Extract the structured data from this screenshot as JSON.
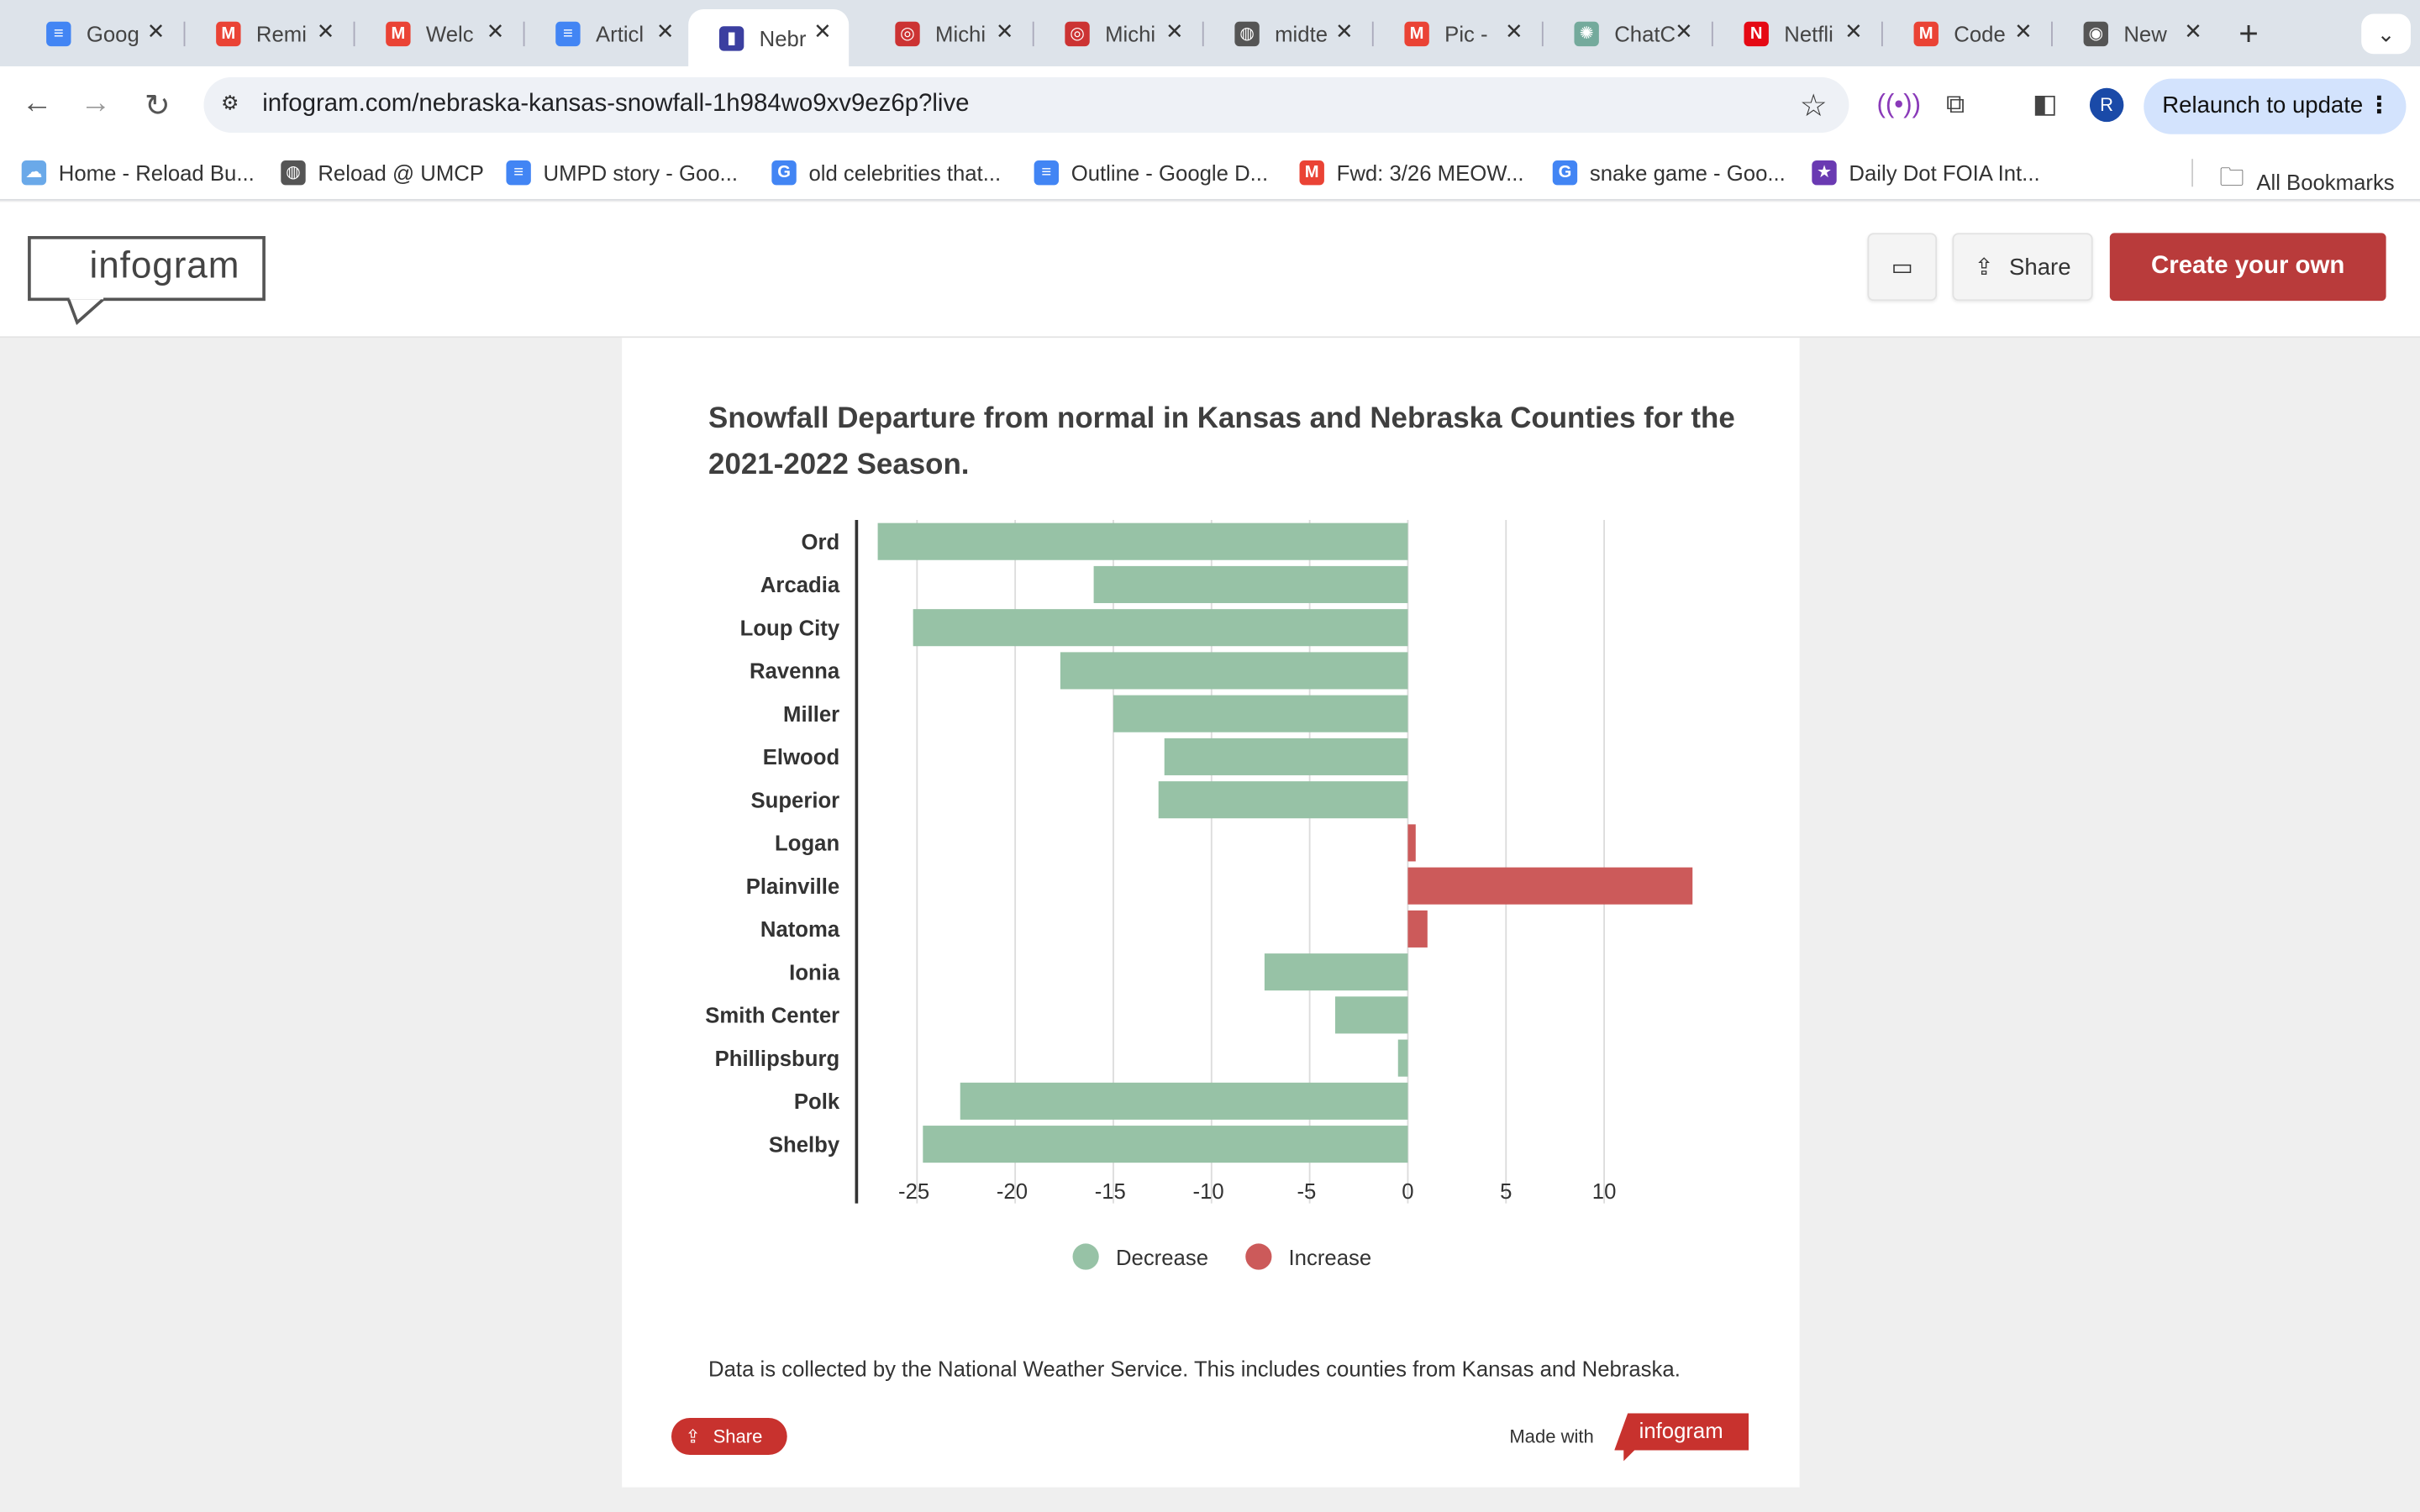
{
  "tabs": [
    {
      "label": "Goog",
      "icon": "google-docs-icon",
      "color": "#4285f4",
      "glyph": "≡"
    },
    {
      "label": "Remi",
      "icon": "gmail-icon",
      "color": "#ea4335",
      "glyph": "M"
    },
    {
      "label": "Welc",
      "icon": "gmail-icon",
      "color": "#ea4335",
      "glyph": "M"
    },
    {
      "label": "Articl",
      "icon": "google-docs-icon",
      "color": "#4285f4",
      "glyph": "≡"
    },
    {
      "label": "Nebr",
      "icon": "infogram-icon",
      "color": "#3b3fa0",
      "glyph": "▮",
      "active": true
    },
    {
      "label": "Michi",
      "icon": "site-icon",
      "color": "#c33",
      "glyph": "◎"
    },
    {
      "label": "Michi",
      "icon": "site-icon",
      "color": "#c33",
      "glyph": "◎"
    },
    {
      "label": "midte",
      "icon": "globe-icon",
      "color": "#555",
      "glyph": "◍"
    },
    {
      "label": "Pic -",
      "icon": "gmail-icon",
      "color": "#ea4335",
      "glyph": "M"
    },
    {
      "label": "ChatC",
      "icon": "chatgpt-icon",
      "color": "#74aa9c",
      "glyph": "✺"
    },
    {
      "label": "Netfli",
      "icon": "netflix-icon",
      "color": "#e50914",
      "glyph": "N"
    },
    {
      "label": "Code",
      "icon": "gmail-icon",
      "color": "#ea4335",
      "glyph": "M"
    },
    {
      "label": "New",
      "icon": "chrome-icon",
      "color": "#555",
      "glyph": "◉"
    }
  ],
  "toolbar": {
    "url": "infogram.com/nebraska-kansas-snowfall-1h984wo9xv9ez6p?live",
    "relaunch_label": "Relaunch to update",
    "avatar_letter": "R"
  },
  "bookmarks": [
    {
      "label": "Home - Reload Bu...",
      "icon": "cloud-icon",
      "color": "#6aa9e9",
      "glyph": "☁"
    },
    {
      "label": "Reload @ UMCP",
      "icon": "globe-icon",
      "color": "#555",
      "glyph": "◍"
    },
    {
      "label": "UMPD story - Goo...",
      "icon": "google-docs-icon",
      "color": "#4285f4",
      "glyph": "≡"
    },
    {
      "label": "old celebrities that...",
      "icon": "google-icon",
      "color": "#4285f4",
      "glyph": "G"
    },
    {
      "label": "Outline - Google D...",
      "icon": "google-docs-icon",
      "color": "#4285f4",
      "glyph": "≡"
    },
    {
      "label": "Fwd: 3/26 MEOW...",
      "icon": "gmail-icon",
      "color": "#ea4335",
      "glyph": "M"
    },
    {
      "label": "snake game - Goo...",
      "icon": "google-icon",
      "color": "#4285f4",
      "glyph": "G"
    },
    {
      "label": "Daily Dot FOIA Int...",
      "icon": "star-icon",
      "color": "#6a3ab2",
      "glyph": "★"
    }
  ],
  "all_bookmarks_label": "All Bookmarks",
  "header": {
    "logo_text": "infogram",
    "share_label": "Share",
    "create_label": "Create your own"
  },
  "colors": {
    "decrease": "#97c2a6",
    "increase": "#cc5a5a"
  },
  "chart_data": {
    "type": "bar",
    "orientation": "horizontal",
    "title": "Snowfall Departure from normal in Kansas and Nebraska Counties for the 2021-2022 Season.",
    "categories": [
      "Ord",
      "Arcadia",
      "Loup City",
      "Ravenna",
      "Miller",
      "Elwood",
      "Superior",
      "Logan",
      "Plainville",
      "Natoma",
      "Ionia",
      "Smith Center",
      "Phillipsburg",
      "Polk",
      "Shelby"
    ],
    "values": [
      -27,
      -16,
      -25.2,
      -17.7,
      -15,
      -12.4,
      -12.7,
      0.4,
      14.5,
      1,
      -7.3,
      -3.7,
      -0.5,
      -22.8,
      -24.7
    ],
    "xlim": [
      -28,
      15
    ],
    "x_ticks": [
      -25,
      -20,
      -15,
      -10,
      -5,
      0,
      5,
      10
    ],
    "legend": [
      "Decrease",
      "Increase"
    ],
    "legend_position": "bottom",
    "grid": true
  },
  "footnote": "Data is collected by the National Weather Service. This includes counties from Kansas and Nebraska.",
  "footer": {
    "share_label": "Share",
    "made_with": "Made with",
    "brand": "infogram"
  }
}
